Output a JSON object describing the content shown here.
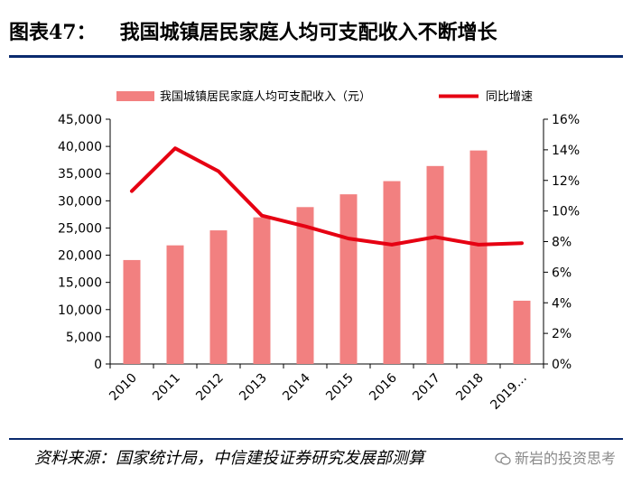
{
  "figure": {
    "number": "图表47：",
    "title": "我国城镇居民家庭人均可支配收入不断增长"
  },
  "source": "资料来源：国家统计局，中信建投证券研究发展部测算",
  "watermark": "新岩的投资思考",
  "colors": {
    "bar": "#f28080",
    "line": "#e60012",
    "rule": "#0a2a6e"
  },
  "chart_data": {
    "type": "bar+line",
    "categories": [
      "2010",
      "2011",
      "2012",
      "2013",
      "2014",
      "2015",
      "2016",
      "2017",
      "2018",
      "2019…"
    ],
    "series": [
      {
        "name": "我国城镇居民家庭人均可支配收入（元）",
        "type": "bar",
        "axis": "left",
        "values": [
          19109,
          21810,
          24565,
          26955,
          28844,
          31195,
          33616,
          36396,
          39251,
          11633
        ]
      },
      {
        "name": "同比增速",
        "type": "line",
        "axis": "right",
        "values": [
          11.3,
          14.1,
          12.6,
          9.7,
          9.0,
          8.2,
          7.8,
          8.3,
          7.8,
          7.9
        ]
      }
    ],
    "y_left": {
      "min": 0,
      "max": 45000,
      "step": 5000,
      "tick_labels": [
        "0",
        "5,000",
        "10,000",
        "15,000",
        "20,000",
        "25,000",
        "30,000",
        "35,000",
        "40,000",
        "45,000"
      ]
    },
    "y_right": {
      "min": 0,
      "max": 16,
      "step": 2,
      "tick_labels": [
        "0%",
        "2%",
        "4%",
        "6%",
        "8%",
        "10%",
        "12%",
        "14%",
        "16%"
      ]
    },
    "legend_position": "top",
    "grid": false
  }
}
